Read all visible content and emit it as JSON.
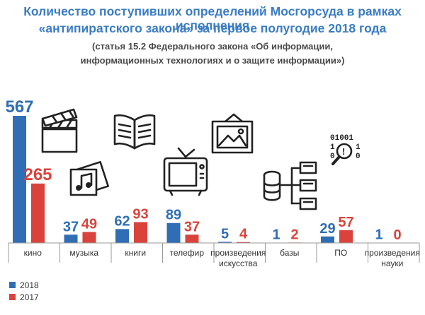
{
  "title_line1": "Количество поступивших определений Мосгорсуда в рамках исполнения",
  "title_line2": "«антипиратского закона» за первое полугодие 2018 года",
  "subtitle_line1": "(статья 15.2 Федерального закона «Об информации,",
  "subtitle_line2": "информационных технологиях и о защите информации»)",
  "colors": {
    "2018": "#2f6db5",
    "2017": "#d9433b",
    "title": "#3a7cc4"
  },
  "icons": [
    "clapperboard-icon",
    "music-records-icon",
    "open-book-icon",
    "tv-icon",
    "picture-frame-icon",
    "database-icon",
    "binary-search-icon"
  ],
  "chart_data": {
    "type": "bar",
    "categories": [
      [
        "кино"
      ],
      [
        "музыка"
      ],
      [
        "книги"
      ],
      [
        "телефир"
      ],
      [
        "произведения",
        "искусства"
      ],
      [
        "базы"
      ],
      [
        "ПО"
      ],
      [
        "произведения",
        "науки"
      ]
    ],
    "series": [
      {
        "name": "2018",
        "values": [
          567,
          37,
          62,
          89,
          5,
          1,
          29,
          1
        ]
      },
      {
        "name": "2017",
        "values": [
          265,
          49,
          93,
          37,
          4,
          2,
          57,
          0
        ]
      }
    ],
    "legend_position": "bottom-left",
    "grid": false
  }
}
